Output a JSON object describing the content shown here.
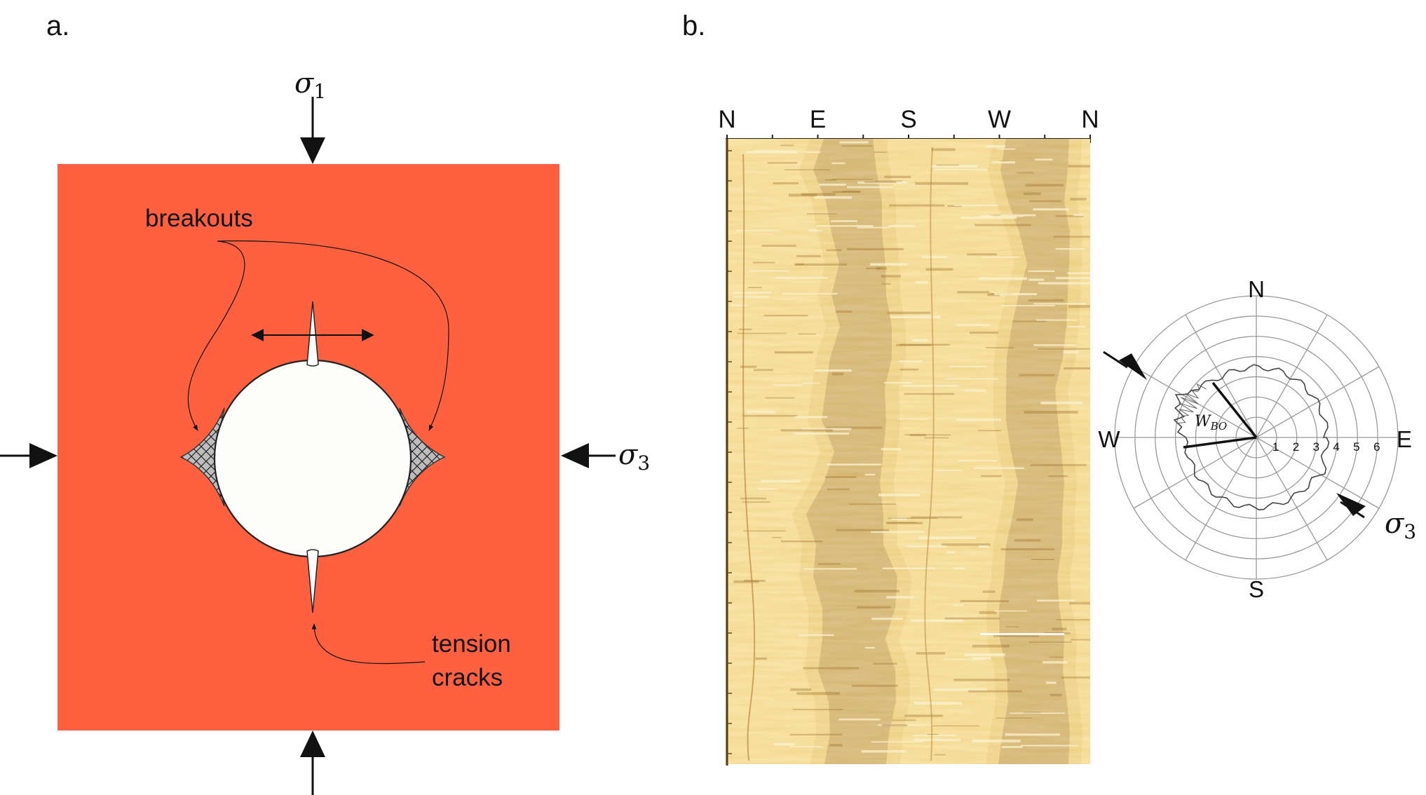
{
  "panel_a": {
    "label": "a.",
    "sigma_max": "σ",
    "sigma_max_sub": "1",
    "sigma_min": "σ",
    "sigma_min_sub": "3",
    "breakouts_label": "breakouts",
    "tension_line1": "tension",
    "tension_line2": "cracks",
    "rock_color": "#fe6040"
  },
  "panel_b": {
    "label": "b.",
    "log_compass": [
      "N",
      "E",
      "S",
      "W",
      "N"
    ],
    "log_colors": {
      "light": "#f6e3a6",
      "mid": "#c89a3a",
      "dark": "#7a4a14"
    },
    "polar": {
      "north": "N",
      "south": "S",
      "east": "E",
      "west": "W",
      "rings": [
        "1",
        "2",
        "3",
        "4",
        "5",
        "6"
      ],
      "wbo": "W",
      "wbo_sub": "BO",
      "sigma": "σ",
      "sigma_sub": "3"
    }
  }
}
